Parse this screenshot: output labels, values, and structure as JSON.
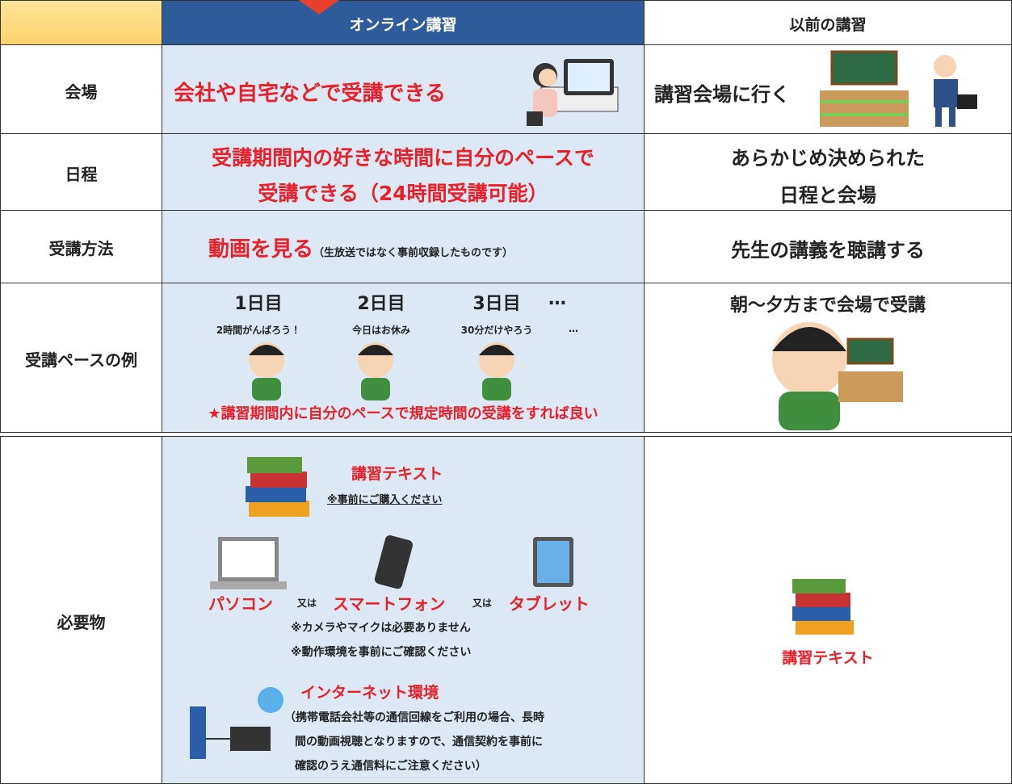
{
  "table": {
    "header": {
      "online": "オンライン講習",
      "previous": "以前の講習"
    },
    "rows": [
      {
        "label": "会場",
        "online": "会社や自宅などで受講できる",
        "previous": "講習会場に行く"
      },
      {
        "label": "日程",
        "online": [
          "受講期間内の好きな時間に自分のペースで",
          "受講できる（24時間受講可能）"
        ],
        "previous": [
          "あらかじめ決められた",
          "日程と会場"
        ]
      },
      {
        "label": "受講方法",
        "online": "動画を見る",
        "online_note": "（生放送ではなく事前収録したものです）",
        "previous": "先生の講義を聴講する"
      },
      {
        "label": "受講ペースの例",
        "days": [
          {
            "day": "1日目",
            "plan": "2時間がんばろう！"
          },
          {
            "day": "2日目",
            "plan": "今日はお休み"
          },
          {
            "day": "3日目",
            "plan": "30分だけやろう"
          },
          {
            "day": "…",
            "plan": "…"
          }
        ],
        "online_note": "★講習期間内に自分のペースで規定時間の受講をすれば良い",
        "previous": "朝〜夕方まで会場で受講"
      },
      {
        "label": "必要物",
        "textbook": {
          "title": "講習テキスト",
          "note": "※事前にご購入ください"
        },
        "devices": [
          "パソコン",
          "スマートフォン",
          "タブレット"
        ],
        "or": "又は",
        "device_notes": [
          "※カメラやマイクは必要ありません",
          "※動作環境を事前にご確認ください"
        ],
        "internet": {
          "title": "インターネット環境",
          "note": [
            "（携帯電話会社等の通信回線をご利用の場合、長時",
            "間の動画視聴となりますので、通信契約を事前に",
            "確認のうえ通信料にご注意ください）"
          ]
        },
        "previous": "講習テキスト"
      }
    ]
  }
}
